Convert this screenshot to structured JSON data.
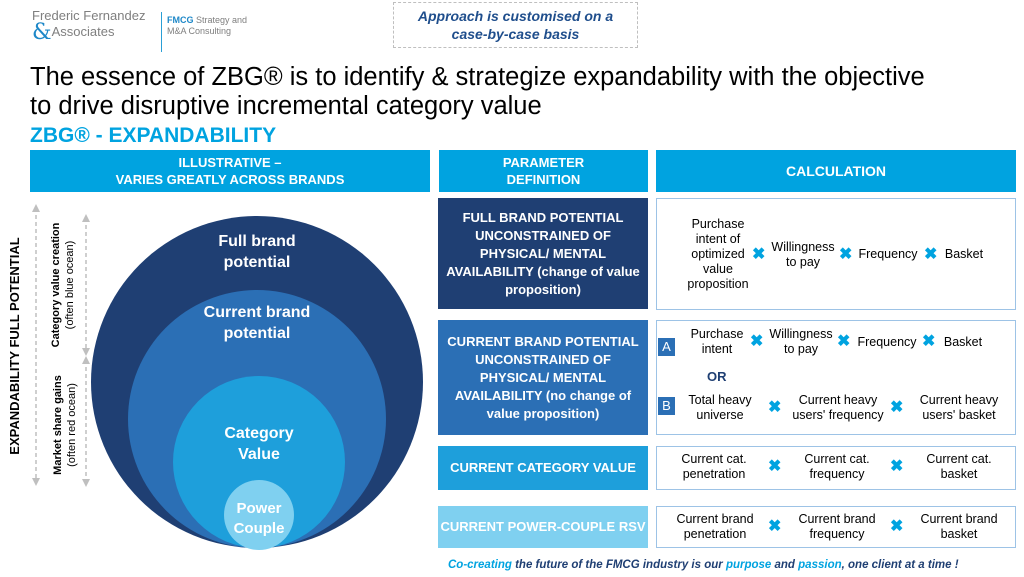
{
  "header": {
    "logo_line1": "Frederic Fernandez",
    "logo_amp": "&",
    "logo_line2": "Associates",
    "tagline_fmcg": "FMCG",
    "tagline_rest1": " Strategy and",
    "tagline_line2": "M&A Consulting",
    "approach_line1": "Approach is customised on a",
    "approach_line2": "case-by-case basis"
  },
  "title": {
    "line1": "The essence of ZBG® is to identify & strategize expandability with the objective",
    "line2": "to drive disruptive incremental category value",
    "subtitle": "ZBG® - EXPANDABILITY"
  },
  "bars": {
    "illustrative_line1": "ILLUSTRATIVE –",
    "illustrative_line2": "VARIES GREATLY ACROSS BRANDS",
    "param_line1": "PARAMETER",
    "param_line2": "DEFINITION",
    "calculation": "CALCULATION"
  },
  "diagram": {
    "axis_main": "EXPANDABILITY FULL POTENTIAL",
    "category_creation": "Category value creation",
    "category_creation_sub": "(often blue ocean)",
    "market_share": "Market share gains",
    "market_share_sub": "(often red ocean)",
    "circle1_line1": "Full brand",
    "circle1_line2": "potential",
    "circle2_line1": "Current brand",
    "circle2_line2": "potential",
    "circle3_line1": "Category",
    "circle3_line2": "Value",
    "circle4_line1": "Power",
    "circle4_line2": "Couple",
    "colors": {
      "c1": "#1f3f73",
      "c2": "#2b6fb5",
      "c3": "#1e9fdb",
      "c4": "#7fd0f0"
    }
  },
  "params": {
    "p1": "FULL BRAND POTENTIAL UNCONSTRAINED OF PHYSICAL/ MENTAL AVAILABILITY (change of value proposition)",
    "p2": "CURRENT BRAND POTENTIAL UNCONSTRAINED OF PHYSICAL/ MENTAL AVAILABILITY (no change of value proposition)",
    "p3": "CURRENT CATEGORY VALUE",
    "p4": "CURRENT POWER-COUPLE RSV"
  },
  "calc": {
    "r1": {
      "a": "Purchase intent of optimized value proposition",
      "b": "Willingness to pay",
      "c": "Frequency",
      "d": "Basket"
    },
    "r2": {
      "badge_a": "A",
      "a1": "Purchase intent",
      "a2": "Willingness to pay",
      "a3": "Frequency",
      "a4": "Basket",
      "or": "OR",
      "badge_b": "B",
      "b1": "Total heavy universe",
      "b2": "Current heavy users' frequency",
      "b3": "Current heavy users' basket"
    },
    "r3": {
      "a": "Current cat. penetration",
      "b": "Current cat. frequency",
      "c": "Current cat. basket"
    },
    "r4": {
      "a": "Current brand penetration",
      "b": "Current brand frequency",
      "c": "Current brand basket"
    },
    "times": "✖"
  },
  "footer": {
    "w1": "Co-creating",
    "w2": " the future of the FMCG industry is our ",
    "w3": "purpose",
    "w4": " and ",
    "w5": "passion",
    "w6": ", one client at a time !"
  }
}
